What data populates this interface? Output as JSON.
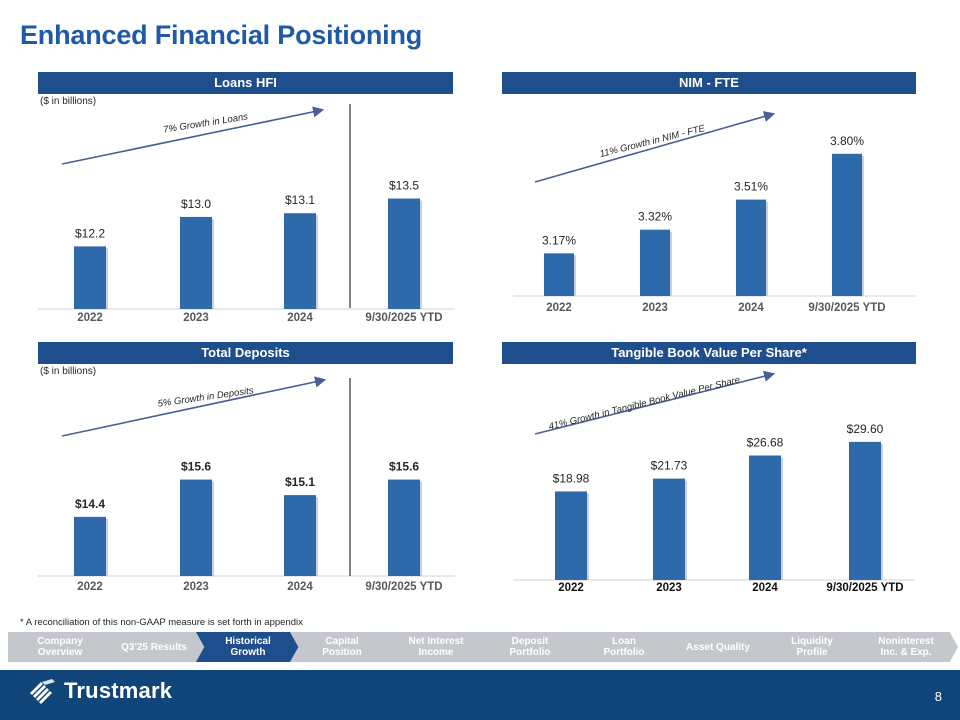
{
  "title": "Enhanced Financial Positioning",
  "footnote": "* A reconciliation of this non-GAAP measure is set forth in appendix",
  "page_number": "8",
  "brand": {
    "name": "Trustmark",
    "primary_color": "#1f4e8c",
    "bar_color": "#2e6aab",
    "title_color": "#1f5aa6",
    "footer_color": "#10457a"
  },
  "nav": {
    "items": [
      {
        "line1": "Company",
        "line2": "Overview",
        "active": false
      },
      {
        "line1": "Q3'25 Results",
        "line2": "",
        "active": false
      },
      {
        "line1": "Historical",
        "line2": "Growth",
        "active": true
      },
      {
        "line1": "Capital",
        "line2": "Position",
        "active": false
      },
      {
        "line1": "Net Interest",
        "line2": "Income",
        "active": false
      },
      {
        "line1": "Deposit",
        "line2": "Portfolio",
        "active": false
      },
      {
        "line1": "Loan",
        "line2": "Portfolio",
        "active": false
      },
      {
        "line1": "Asset Quality",
        "line2": "",
        "active": false
      },
      {
        "line1": "Liquidity",
        "line2": "Profile",
        "active": false
      },
      {
        "line1": "Noninterest",
        "line2": "Inc. & Exp.",
        "active": false
      }
    ]
  },
  "panels": {
    "loans": {
      "header": "Loans HFI",
      "unit_note": "($ in billions)"
    },
    "nim": {
      "header": "NIM - FTE"
    },
    "deposits": {
      "header": "Total Deposits",
      "unit_note": "($ in billions)"
    },
    "tbv": {
      "header": "Tangible Book Value Per Share*"
    }
  },
  "chart_data": [
    {
      "id": "loans",
      "type": "bar",
      "title": "Loans HFI",
      "ylabel": "($ in billions)",
      "categories": [
        "2022",
        "2023",
        "2024",
        "9/30/2025 YTD"
      ],
      "values": [
        12.2,
        13.0,
        13.1,
        13.5
      ],
      "labels": [
        "$12.2",
        "$13.0",
        "$13.1",
        "$13.5"
      ],
      "ylim": [
        10.5,
        14.6
      ],
      "bold_labels": false,
      "bold_categories": true,
      "annotation": "7% Growth in Loans",
      "divider_before_last": true
    },
    {
      "id": "nim",
      "type": "bar",
      "title": "NIM - FTE",
      "categories": [
        "2022",
        "2023",
        "2024",
        "9/30/2025 YTD"
      ],
      "values": [
        3.17,
        3.32,
        3.51,
        3.8
      ],
      "labels": [
        "3.17%",
        "3.32%",
        "3.51%",
        "3.80%"
      ],
      "ylim": [
        2.9,
        3.9
      ],
      "bold_labels": false,
      "bold_categories": true,
      "annotation": "11% Growth in NIM - FTE",
      "divider_before_last": false
    },
    {
      "id": "deposits",
      "type": "bar",
      "title": "Total Deposits",
      "ylabel": "($ in billions)",
      "categories": [
        "2022",
        "2023",
        "2024",
        "9/30/2025 YTD"
      ],
      "values": [
        14.4,
        15.6,
        15.1,
        15.6
      ],
      "labels": [
        "$14.4",
        "$15.6",
        "$15.1",
        "$15.6"
      ],
      "ylim": [
        12.5,
        16.55
      ],
      "bold_labels": true,
      "bold_categories": true,
      "annotation": "5% Growth in Deposits",
      "divider_before_last": true
    },
    {
      "id": "tbv",
      "type": "bar",
      "title": "Tangible Book Value Per Share*",
      "categories": [
        "2022",
        "2023",
        "2024",
        "9/30/2025 YTD"
      ],
      "values": [
        18.98,
        21.73,
        26.68,
        29.6
      ],
      "labels": [
        "$18.98",
        "$21.73",
        "$26.68",
        "$29.60"
      ],
      "ylim": [
        0,
        33
      ],
      "bold_labels": false,
      "bold_categories": true,
      "dark_categories": true,
      "annotation": "41% Growth in Tangible Book Value Per Share",
      "divider_before_last": false
    }
  ]
}
